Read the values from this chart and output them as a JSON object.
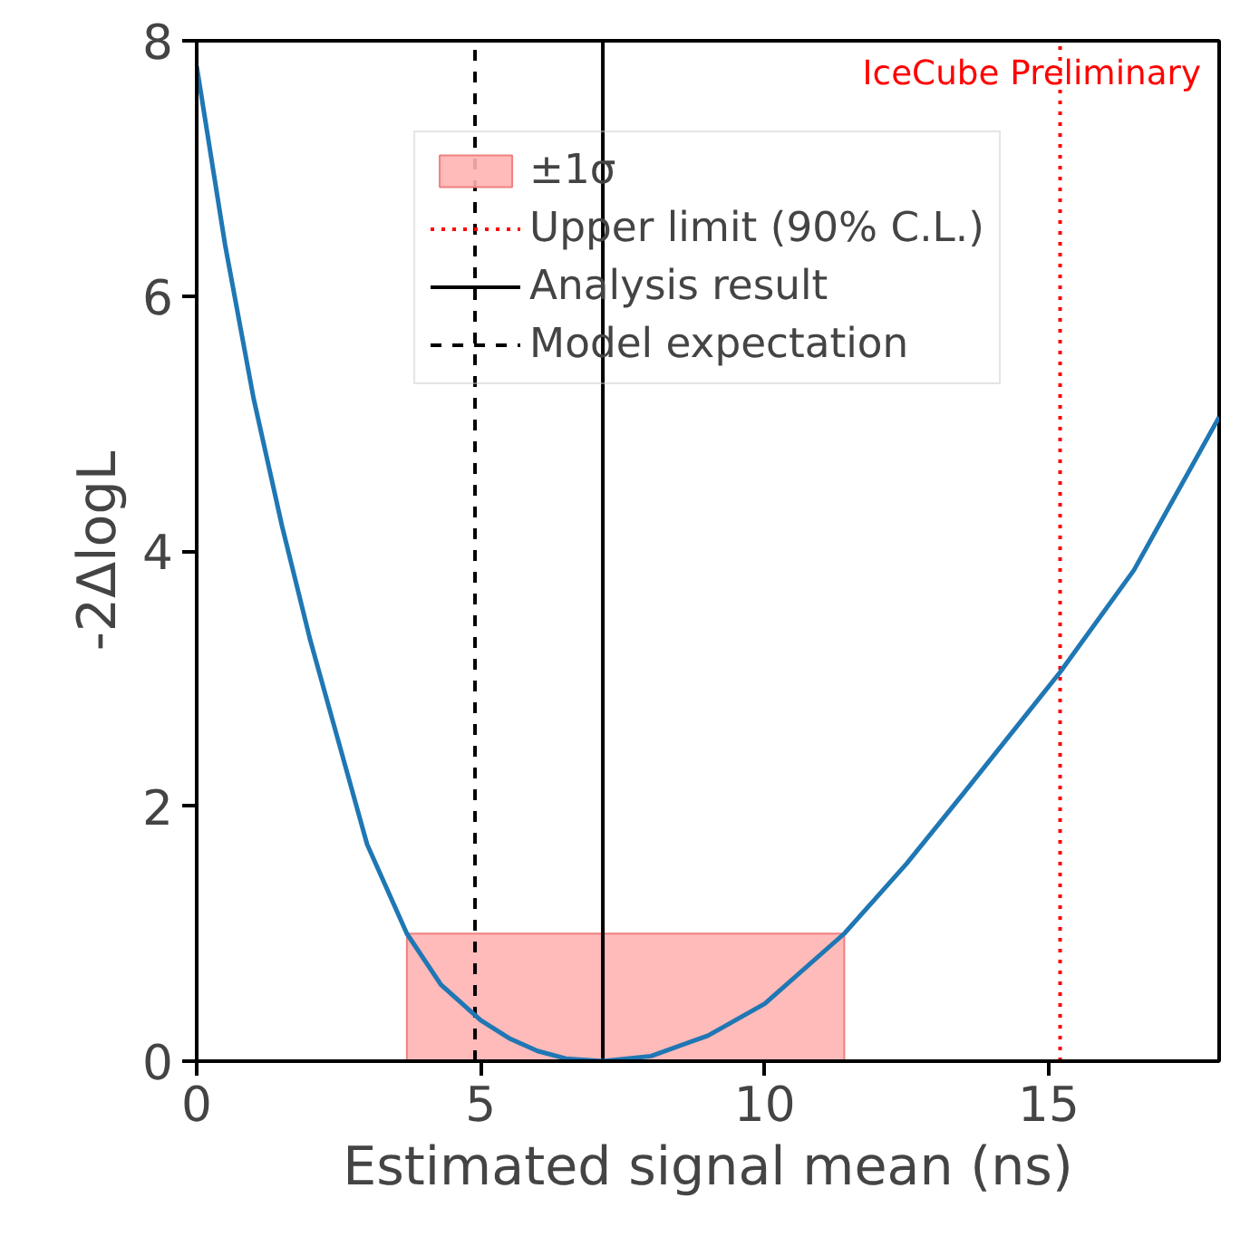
{
  "chart_data": {
    "type": "line",
    "xlabel": "Estimated signal mean (ns)",
    "ylabel": "-2ΔlogL",
    "x": [
      0,
      0.5,
      1,
      1.5,
      2,
      2.5,
      3,
      3.7,
      4.3,
      5,
      5.5,
      6,
      6.5,
      7.15,
      8,
      9,
      10,
      11.4,
      12.5,
      13.5,
      15.2,
      16.5,
      18
    ],
    "series": [
      {
        "color": "#1f77b4",
        "values": [
          7.8,
          6.4,
          5.2,
          4.2,
          3.3,
          2.5,
          1.7,
          1,
          0.6,
          0.32,
          0.18,
          0.08,
          0.02,
          0,
          0.04,
          0.2,
          0.45,
          1,
          1.55,
          2.1,
          3.05,
          3.85,
          5.05
        ]
      }
    ],
    "xlim": [
      0,
      18
    ],
    "ylim": [
      0,
      8
    ],
    "xticks": [
      0,
      5,
      10,
      15
    ],
    "yticks": [
      0,
      2,
      4,
      6,
      8
    ],
    "grid": false,
    "legend": "top",
    "bands": [
      {
        "axis": "x",
        "from": 3.7,
        "to": 11.4,
        "label": "±1σ",
        "color": "#ffb3b3"
      }
    ],
    "ref_lines": [
      {
        "axis": "x",
        "value": 15.2,
        "label": "Upper limit (90% C.L.)",
        "color": "#ff0000",
        "line_style": "dotted"
      },
      {
        "axis": "x",
        "value": 7.15,
        "label": "Analysis result",
        "color": "#000000",
        "line_style": "solid"
      },
      {
        "axis": "x",
        "value": 4.9,
        "label": "Model expectation",
        "color": "#000000",
        "line_style": "dashed"
      }
    ],
    "annotations": [
      "IceCube Preliminary"
    ]
  }
}
